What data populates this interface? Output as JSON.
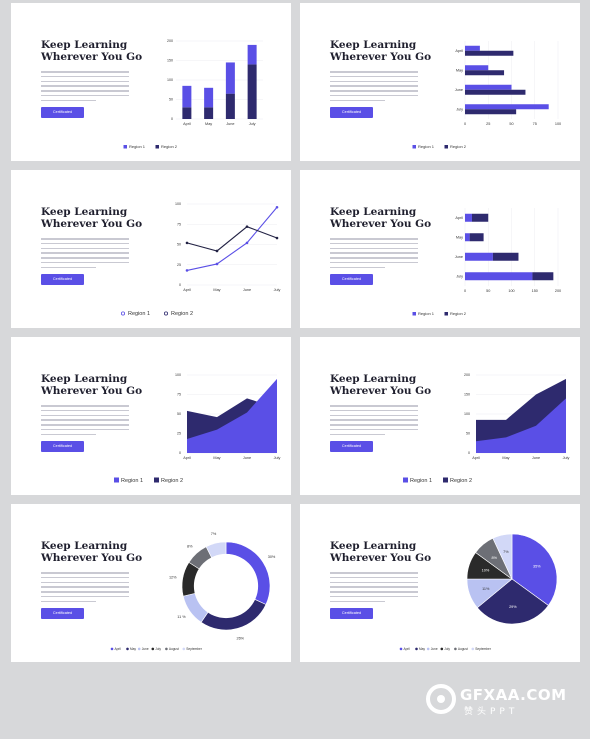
{
  "slide_title": "Keep Learning\nWherever You Go",
  "button_label": "Certificated",
  "legend": {
    "r1": "Region 1",
    "r2": "Region 2"
  },
  "colors": {
    "primary": "#5a4fe6",
    "dark": "#2e2a6e",
    "light": "#b9c2f2",
    "grey": "#6b6b6b",
    "black": "#222222"
  },
  "watermark": {
    "text": "GFXAA.COM",
    "sub": "赞头PPT"
  },
  "chart_data": [
    {
      "type": "bar",
      "stacked": true,
      "categories": [
        "April",
        "May",
        "June",
        "July"
      ],
      "series": [
        {
          "name": "Region 1",
          "values": [
            30,
            30,
            65,
            140
          ]
        },
        {
          "name": "Region 2",
          "values": [
            55,
            50,
            80,
            50
          ]
        }
      ],
      "ylim": [
        0,
        200
      ],
      "yticks": [
        0,
        50,
        100,
        150,
        200
      ]
    },
    {
      "type": "bar",
      "orientation": "horizontal",
      "categories": [
        "April",
        "May",
        "June",
        "July"
      ],
      "series": [
        {
          "name": "Region 1",
          "values": [
            16,
            25,
            50,
            90
          ]
        },
        {
          "name": "Region 2",
          "values": [
            52,
            42,
            65,
            55
          ]
        }
      ],
      "xlim": [
        0,
        100
      ],
      "xticks": [
        0,
        25,
        50,
        75,
        100
      ]
    },
    {
      "type": "line",
      "categories": [
        "April",
        "May",
        "June",
        "July"
      ],
      "series": [
        {
          "name": "Region 1",
          "values": [
            18,
            26,
            52,
            96
          ]
        },
        {
          "name": "Region 2",
          "values": [
            52,
            42,
            72,
            58
          ]
        }
      ],
      "ylim": [
        0,
        100
      ],
      "yticks": [
        0,
        25,
        50,
        75,
        100
      ]
    },
    {
      "type": "bar",
      "orientation": "horizontal",
      "stacked": true,
      "categories": [
        "April",
        "May",
        "June",
        "July"
      ],
      "series": [
        {
          "name": "Region 1",
          "values": [
            15,
            10,
            60,
            145
          ]
        },
        {
          "name": "Region 2",
          "values": [
            35,
            30,
            55,
            45
          ]
        }
      ],
      "xlim": [
        0,
        200
      ],
      "xticks": [
        0,
        50,
        100,
        150,
        200
      ]
    },
    {
      "type": "area",
      "categories": [
        "April",
        "May",
        "June",
        "July"
      ],
      "series": [
        {
          "name": "Region 2",
          "values": [
            54,
            46,
            70,
            58
          ]
        },
        {
          "name": "Region 1",
          "values": [
            18,
            30,
            52,
            95
          ]
        }
      ],
      "ylim": [
        0,
        100
      ],
      "yticks": [
        0,
        25,
        50,
        75,
        100
      ]
    },
    {
      "type": "area",
      "categories": [
        "April",
        "May",
        "June",
        "July"
      ],
      "series": [
        {
          "name": "Region 2",
          "values": [
            85,
            85,
            150,
            190
          ]
        },
        {
          "name": "Region 1",
          "values": [
            30,
            40,
            70,
            140
          ]
        }
      ],
      "ylim": [
        0,
        200
      ],
      "yticks": [
        0,
        50,
        100,
        150,
        200
      ]
    },
    {
      "type": "pie",
      "donut": true,
      "categories": [
        "April",
        "May",
        "June",
        "July",
        "August",
        "September"
      ],
      "values": [
        30,
        26,
        11,
        12,
        8,
        7
      ],
      "labels": [
        "30%",
        "26%",
        "11 %",
        "12%",
        "8%",
        "7%"
      ]
    },
    {
      "type": "pie",
      "categories": [
        "April",
        "May",
        "June",
        "July",
        "August",
        "September"
      ],
      "values": [
        35,
        29,
        11,
        10,
        8,
        7
      ],
      "labels": [
        "35%",
        "29%",
        "11%",
        "10%",
        "8%",
        "7%"
      ]
    }
  ]
}
